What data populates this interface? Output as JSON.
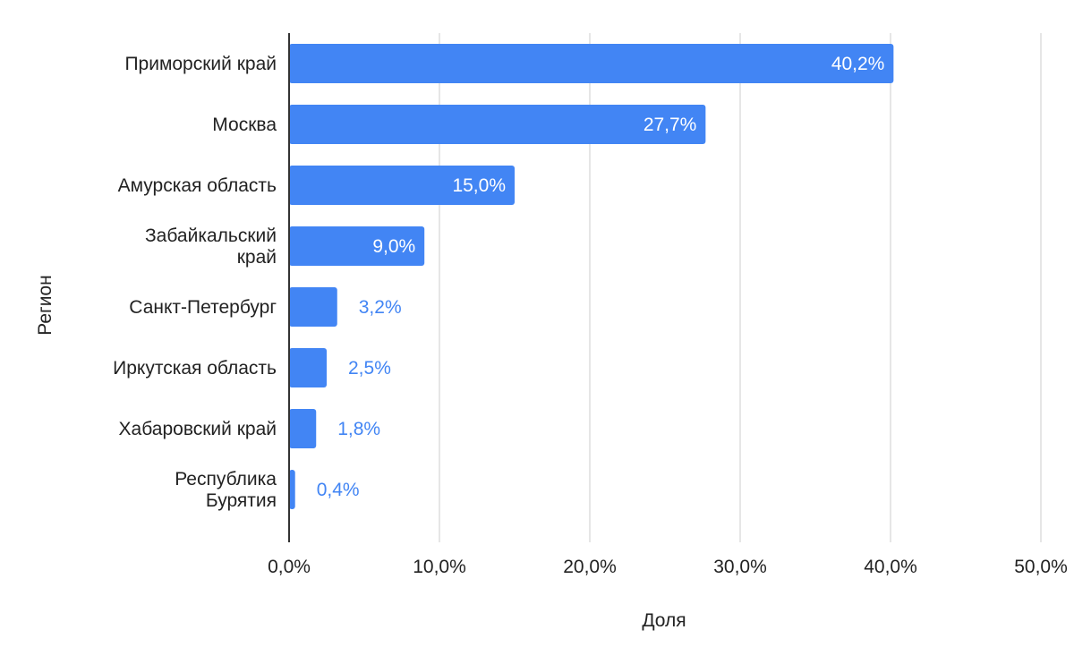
{
  "chart_data": {
    "type": "bar",
    "orientation": "horizontal",
    "categories": [
      [
        "Приморский край"
      ],
      [
        "Москва"
      ],
      [
        "Амурская область"
      ],
      [
        "Забайкальский",
        "край"
      ],
      [
        "Санкт-Петербург"
      ],
      [
        "Иркутская область"
      ],
      [
        "Хабаровский край"
      ],
      [
        "Республика",
        "Бурятия"
      ]
    ],
    "values": [
      40.2,
      27.7,
      15.0,
      9.0,
      3.2,
      2.5,
      1.8,
      0.4
    ],
    "data_labels": [
      "40,2%",
      "27,7%",
      "15,0%",
      "9,0%",
      "3,2%",
      "2,5%",
      "1,8%",
      "0,4%"
    ],
    "xlim": [
      0,
      50
    ],
    "x_ticks": [
      0,
      10,
      20,
      30,
      40,
      50
    ],
    "x_tick_labels": [
      "0,0%",
      "10,0%",
      "20,0%",
      "30,0%",
      "40,0%",
      "50,0%"
    ],
    "xlabel": "Доля",
    "ylabel": "Регион",
    "grid": true,
    "bar_color": "#4285f4",
    "inside_label_color": "#ffffff",
    "outside_label_color": "#4285f4"
  }
}
